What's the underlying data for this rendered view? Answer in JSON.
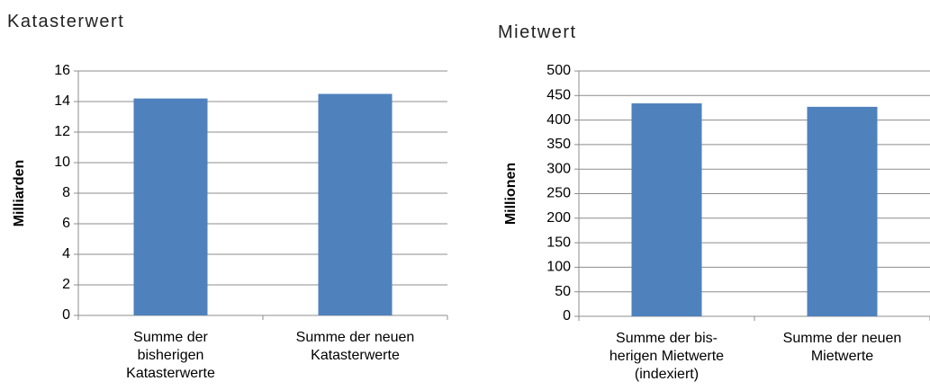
{
  "chart_data": [
    {
      "type": "bar",
      "title": "Katasterwert",
      "y_label": "Milliarden",
      "categories": [
        "Summe der\nbisherigen\nKatasterwerte",
        "Summe der neuen\nKatasterwerte"
      ],
      "values": [
        14.2,
        14.5
      ],
      "color": "#4f81bd",
      "ylim": [
        0,
        16
      ],
      "yticks": [
        0,
        2,
        4,
        6,
        8,
        10,
        12,
        14,
        16
      ],
      "grid": true
    },
    {
      "type": "bar",
      "title": "Mietwert",
      "y_label": "Millionen",
      "categories": [
        "Summe der bis-\nherigen Mietwerte\n(indexiert)",
        "Summe der neuen\nMietwerte"
      ],
      "values": [
        434,
        427
      ],
      "color": "#4f81bd",
      "ylim": [
        0,
        500
      ],
      "yticks": [
        0,
        50,
        100,
        150,
        200,
        250,
        300,
        350,
        400,
        450,
        500
      ],
      "grid": true
    }
  ]
}
